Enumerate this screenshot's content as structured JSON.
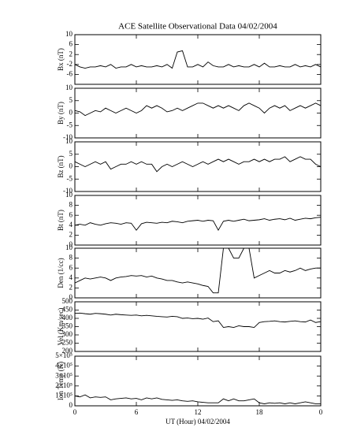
{
  "chart_data": [
    {
      "type": "line",
      "title": "ACE Satellite Observational Data   04/02/2004",
      "ylabel": "Bx (nT)",
      "x": [
        0,
        0.5,
        1,
        1.5,
        2,
        2.5,
        3,
        3.5,
        4,
        4.5,
        5,
        5.5,
        6,
        6.5,
        7,
        7.5,
        8,
        8.5,
        9,
        9.5,
        10,
        10.5,
        11,
        11.5,
        12,
        12.5,
        13,
        13.5,
        14,
        14.5,
        15,
        15.5,
        16,
        16.5,
        17,
        17.5,
        18,
        18.5,
        19,
        19.5,
        20,
        20.5,
        21,
        21.5,
        22,
        22.5,
        23,
        23.5,
        24
      ],
      "values": [
        -2,
        -3,
        -3.5,
        -3,
        -3,
        -2.5,
        -3,
        -2,
        -3.5,
        -3,
        -3,
        -2,
        -3,
        -2.5,
        -3,
        -3,
        -2.5,
        -3,
        -2,
        -3.5,
        3,
        3.5,
        -3,
        -3,
        -2,
        -3,
        -1,
        -2.5,
        -3,
        -3,
        -2,
        -3,
        -2.5,
        -3,
        -3,
        -2,
        -3,
        -1.5,
        -3,
        -3,
        -2.5,
        -3,
        -3,
        -2,
        -3,
        -2.5,
        -3,
        -2,
        -3
      ],
      "xlim": [
        0,
        24
      ],
      "ylim": [
        -10,
        10
      ],
      "yticks": [
        -6,
        -2,
        2,
        6,
        10
      ],
      "color": "#000000"
    },
    {
      "type": "line",
      "ylabel": "By (nT)",
      "x": [
        0,
        0.5,
        1,
        1.5,
        2,
        2.5,
        3,
        3.5,
        4,
        4.5,
        5,
        5.5,
        6,
        6.5,
        7,
        7.5,
        8,
        8.5,
        9,
        9.5,
        10,
        10.5,
        11,
        11.5,
        12,
        12.5,
        13,
        13.5,
        14,
        14.5,
        15,
        15.5,
        16,
        16.5,
        17,
        17.5,
        18,
        18.5,
        19,
        19.5,
        20,
        20.5,
        21,
        21.5,
        22,
        22.5,
        23,
        23.5,
        24
      ],
      "values": [
        1,
        0.5,
        -1,
        0,
        1,
        0.5,
        2,
        1,
        0,
        1,
        2,
        1,
        0,
        1,
        3,
        2,
        3,
        2,
        0.5,
        1,
        2,
        1,
        2,
        3,
        4,
        4,
        3,
        2,
        3,
        2,
        3,
        2,
        1,
        3,
        4,
        3,
        2,
        0,
        2,
        3,
        2,
        3,
        1,
        2,
        3,
        2,
        3,
        4,
        3
      ],
      "xlim": [
        0,
        24
      ],
      "ylim": [
        -10,
        10
      ],
      "yticks": [
        -10,
        -5,
        0,
        5,
        10
      ],
      "color": "#000000"
    },
    {
      "type": "line",
      "ylabel": "Bz (nT)",
      "x": [
        0,
        0.5,
        1,
        1.5,
        2,
        2.5,
        3,
        3.5,
        4,
        4.5,
        5,
        5.5,
        6,
        6.5,
        7,
        7.5,
        8,
        8.5,
        9,
        9.5,
        10,
        10.5,
        11,
        11.5,
        12,
        12.5,
        13,
        13.5,
        14,
        14.5,
        15,
        15.5,
        16,
        16.5,
        17,
        17.5,
        18,
        18.5,
        19,
        19.5,
        20,
        20.5,
        21,
        21.5,
        22,
        22.5,
        23,
        23.5,
        24
      ],
      "values": [
        2,
        1,
        0,
        1,
        2,
        1,
        2,
        -1,
        0,
        1,
        1,
        2,
        1,
        2,
        1,
        1,
        -2,
        0,
        1,
        0,
        1,
        2,
        1,
        0,
        1,
        2,
        1,
        2,
        3,
        2,
        3,
        2,
        1,
        2,
        2,
        3,
        2,
        3,
        2,
        3,
        3,
        4,
        2,
        3,
        4,
        3,
        3,
        1,
        0
      ],
      "xlim": [
        0,
        24
      ],
      "ylim": [
        -10,
        10
      ],
      "yticks": [
        -10,
        -5,
        0,
        5,
        10
      ],
      "color": "#000000"
    },
    {
      "type": "line",
      "ylabel": "Bt (nT)",
      "x": [
        0,
        0.5,
        1,
        1.5,
        2,
        2.5,
        3,
        3.5,
        4,
        4.5,
        5,
        5.5,
        6,
        6.5,
        7,
        7.5,
        8,
        8.5,
        9,
        9.5,
        10,
        10.5,
        11,
        11.5,
        12,
        12.5,
        13,
        13.5,
        14,
        14.5,
        15,
        15.5,
        16,
        16.5,
        17,
        17.5,
        18,
        18.5,
        19,
        19.5,
        20,
        20.5,
        21,
        21.5,
        22,
        22.5,
        23,
        23.5,
        24
      ],
      "values": [
        4,
        4.2,
        4,
        4.5,
        4.2,
        4,
        4.3,
        4.5,
        4.4,
        4.2,
        4.5,
        4.4,
        3,
        4.3,
        4.6,
        4.5,
        4.4,
        4.6,
        4.5,
        4.8,
        4.7,
        4.5,
        4.8,
        4.9,
        5,
        4.8,
        5,
        4.9,
        3,
        4.8,
        5,
        4.8,
        5,
        5.2,
        4.9,
        5,
        5.1,
        5.3,
        5,
        5.2,
        5.3,
        5.1,
        5.4,
        5,
        5.2,
        5.4,
        5.3,
        5.5,
        5.6
      ],
      "xlim": [
        0,
        24
      ],
      "ylim": [
        0,
        10
      ],
      "yticks": [
        0,
        2,
        4,
        6,
        8,
        10
      ],
      "color": "#000000"
    },
    {
      "type": "line",
      "ylabel": "Den (1/cc)",
      "x": [
        0,
        0.5,
        1,
        1.5,
        2,
        2.5,
        3,
        3.5,
        4,
        4.5,
        5,
        5.5,
        6,
        6.5,
        7,
        7.5,
        8,
        8.5,
        9,
        9.5,
        10,
        10.5,
        11,
        11.5,
        12,
        12.5,
        13,
        13.5,
        14,
        14.5,
        15,
        15.5,
        16,
        16.5,
        17,
        17.5,
        18,
        18.5,
        19,
        19.5,
        20,
        20.5,
        21,
        21.5,
        22,
        22.5,
        23,
        23.5,
        24
      ],
      "values": [
        3,
        3.5,
        4,
        3.8,
        4,
        4.2,
        4,
        3.5,
        4,
        4.2,
        4.3,
        4.5,
        4.4,
        4.5,
        4.2,
        4.4,
        4,
        3.8,
        3.5,
        3.5,
        3.2,
        3,
        3.2,
        3,
        2.8,
        2.5,
        2.3,
        1,
        1,
        10,
        10,
        8,
        8,
        10,
        10,
        4,
        4.5,
        5,
        5.5,
        5,
        5,
        5.5,
        5.2,
        5.5,
        6,
        5.5,
        5.8,
        6,
        6
      ],
      "xlim": [
        0,
        24
      ],
      "ylim": [
        0,
        10
      ],
      "yticks": [
        0,
        2,
        4,
        6,
        8,
        10
      ],
      "color": "#000000"
    },
    {
      "type": "line",
      "ylabel": "Vel (Km/sec)",
      "x": [
        0,
        0.5,
        1,
        1.5,
        2,
        2.5,
        3,
        3.5,
        4,
        4.5,
        5,
        5.5,
        6,
        6.5,
        7,
        7.5,
        8,
        8.5,
        9,
        9.5,
        10,
        10.5,
        11,
        11.5,
        12,
        12.5,
        13,
        13.5,
        14,
        14.5,
        15,
        15.5,
        16,
        16.5,
        17,
        17.5,
        18,
        18.5,
        19,
        19.5,
        20,
        20.5,
        21,
        21.5,
        22,
        22.5,
        23,
        23.5,
        24
      ],
      "values": [
        430,
        432,
        428,
        425,
        430,
        428,
        425,
        420,
        425,
        422,
        420,
        418,
        420,
        415,
        418,
        415,
        412,
        410,
        408,
        412,
        410,
        400,
        402,
        398,
        400,
        395,
        402,
        380,
        385,
        345,
        350,
        345,
        355,
        350,
        350,
        345,
        375,
        380,
        382,
        385,
        380,
        378,
        382,
        385,
        380,
        378,
        390,
        375,
        380
      ],
      "xlim": [
        0,
        24
      ],
      "ylim": [
        200,
        500
      ],
      "yticks": [
        200,
        250,
        300,
        350,
        400,
        450,
        500
      ],
      "color": "#000000"
    },
    {
      "type": "line",
      "ylabel": "Ion Temp (K)",
      "xlabel": "UT (Hour)  04/02/2004",
      "x": [
        0,
        0.5,
        1,
        1.5,
        2,
        2.5,
        3,
        3.5,
        4,
        4.5,
        5,
        5.5,
        6,
        6.5,
        7,
        7.5,
        8,
        8.5,
        9,
        9.5,
        10,
        10.5,
        11,
        11.5,
        12,
        12.5,
        13,
        13.5,
        14,
        14.5,
        15,
        15.5,
        16,
        16.5,
        17,
        17.5,
        18,
        18.5,
        19,
        19.5,
        20,
        20.5,
        21,
        21.5,
        22,
        22.5,
        23,
        23.5,
        24
      ],
      "values": [
        100000,
        90000,
        110000,
        80000,
        90000,
        85000,
        90000,
        60000,
        70000,
        75000,
        80000,
        70000,
        75000,
        60000,
        80000,
        70000,
        80000,
        65000,
        60000,
        55000,
        60000,
        50000,
        45000,
        50000,
        40000,
        35000,
        30000,
        30000,
        30000,
        70000,
        50000,
        70000,
        50000,
        50000,
        60000,
        70000,
        30000,
        20000,
        30000,
        25000,
        30000,
        20000,
        30000,
        20000,
        30000,
        40000,
        30000,
        20000,
        20000
      ],
      "xlim": [
        0,
        24
      ],
      "ylim": [
        0,
        500000
      ],
      "yticks": [
        0,
        {
          "value": 100000,
          "label": "1×10⁵"
        },
        {
          "value": 200000,
          "label": "2×10⁵"
        },
        {
          "value": 300000,
          "label": "3×10⁵"
        },
        {
          "value": 400000,
          "label": "4×10⁵"
        },
        {
          "value": 500000,
          "label": "5×10⁵"
        }
      ],
      "xticks": [
        0,
        6,
        12,
        18,
        {
          "value": 24,
          "label": "0"
        }
      ],
      "color": "#000000"
    }
  ]
}
